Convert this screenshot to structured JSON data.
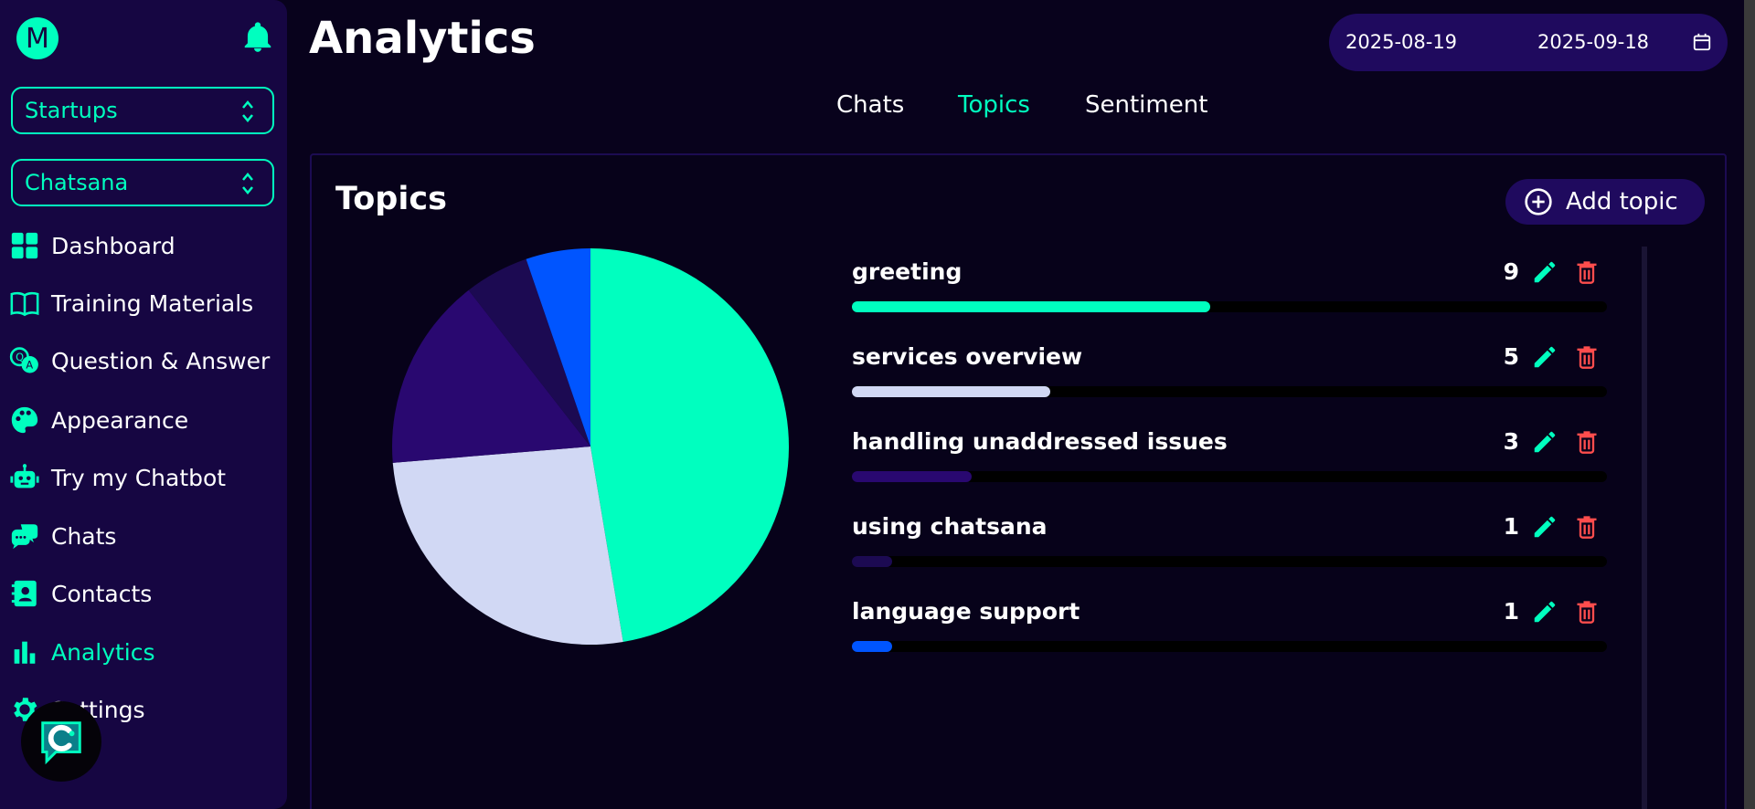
{
  "sidebar": {
    "avatar_letter": "M",
    "org_select": "Startups",
    "bot_select": "Chatsana",
    "items": [
      {
        "label": "Dashboard",
        "icon": "dashboard-icon"
      },
      {
        "label": "Training Materials",
        "icon": "book-icon"
      },
      {
        "label": "Question & Answer",
        "icon": "qa-icon"
      },
      {
        "label": "Appearance",
        "icon": "palette-icon"
      },
      {
        "label": "Try my Chatbot",
        "icon": "robot-icon"
      },
      {
        "label": "Chats",
        "icon": "chat-bubbles-icon"
      },
      {
        "label": "Contacts",
        "icon": "contacts-icon"
      },
      {
        "label": "Analytics",
        "icon": "bar-chart-icon",
        "active": true
      },
      {
        "label": "Settings",
        "icon": "gear-icon"
      }
    ]
  },
  "header": {
    "title": "Analytics",
    "date_from": "2025-08-19",
    "date_to": "2025-09-18"
  },
  "tabs": [
    {
      "label": "Chats"
    },
    {
      "label": "Topics",
      "active": true
    },
    {
      "label": "Sentiment"
    }
  ],
  "panel": {
    "title": "Topics",
    "add_label": "Add topic"
  },
  "colors": {
    "accent": "#00ffbf",
    "danger": "#ff4d4d",
    "background": "#08021c"
  },
  "chart_data": {
    "type": "pie",
    "categories": [
      "greeting",
      "services overview",
      "handling unaddressed issues",
      "using chatsana",
      "language support"
    ],
    "values": [
      9,
      5,
      3,
      1,
      1
    ],
    "colors": [
      "#00ffbf",
      "#d1d8f4",
      "#290870",
      "#1c0a52",
      "#0055ff"
    ]
  },
  "topics": [
    {
      "name": "greeting",
      "count": "9",
      "fill_fraction": 0.474,
      "color": "#00ffbf"
    },
    {
      "name": "services overview",
      "count": "5",
      "fill_fraction": 0.263,
      "color": "#d1d8f4"
    },
    {
      "name": "handling unaddressed issues",
      "count": "3",
      "fill_fraction": 0.158,
      "color": "#290870"
    },
    {
      "name": "using chatsana",
      "count": "1",
      "fill_fraction": 0.053,
      "color": "#1c0a52"
    },
    {
      "name": "language support",
      "count": "1",
      "fill_fraction": 0.053,
      "color": "#0055ff"
    }
  ]
}
